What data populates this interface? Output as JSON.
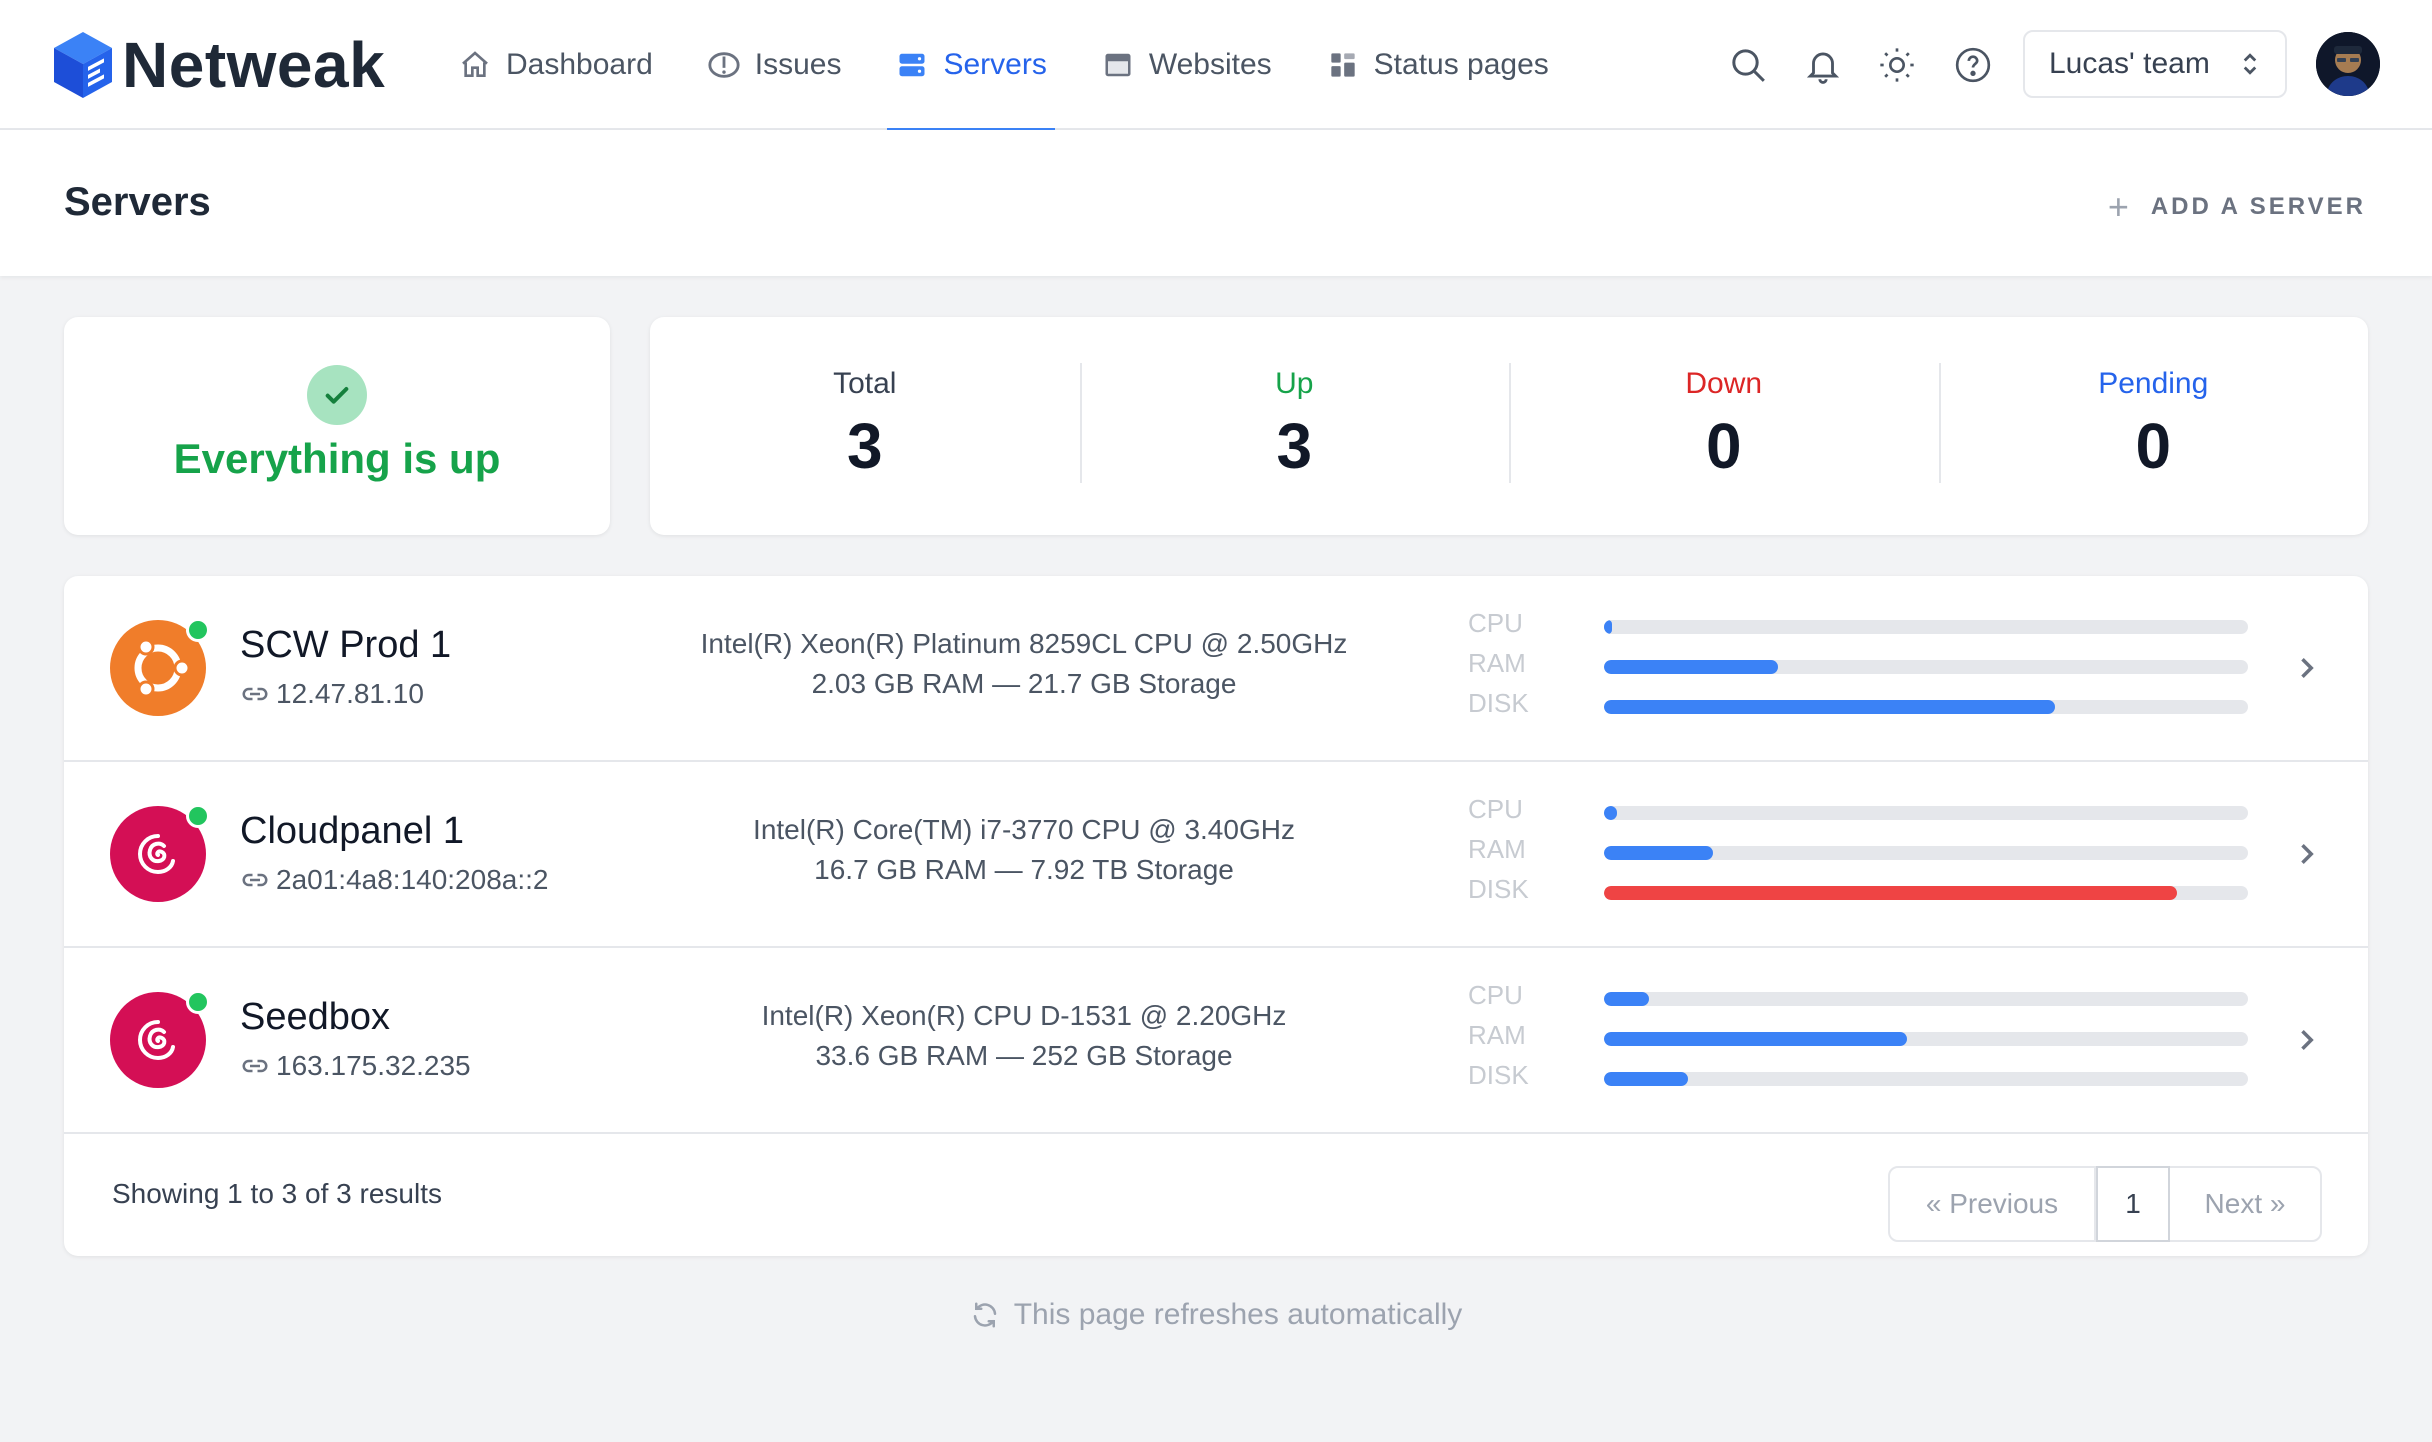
{
  "app": {
    "name": "Netweak"
  },
  "nav": {
    "items": [
      {
        "label": "Dashboard",
        "icon": "home-icon",
        "active": false
      },
      {
        "label": "Issues",
        "icon": "alert-icon",
        "active": false
      },
      {
        "label": "Servers",
        "icon": "server-icon",
        "active": true
      },
      {
        "label": "Websites",
        "icon": "browser-icon",
        "active": false
      },
      {
        "label": "Status pages",
        "icon": "status-page-icon",
        "active": false
      }
    ],
    "team": "Lucas' team"
  },
  "page": {
    "title": "Servers",
    "add_label": "ADD A SERVER"
  },
  "status": {
    "text": "Everything is up"
  },
  "stats": [
    {
      "label": "Total",
      "value": "3",
      "color": "#374151"
    },
    {
      "label": "Up",
      "value": "3",
      "color": "#16a34a"
    },
    {
      "label": "Down",
      "value": "0",
      "color": "#dc2626"
    },
    {
      "label": "Pending",
      "value": "0",
      "color": "#2563eb"
    }
  ],
  "metric_labels": [
    "CPU",
    "RAM",
    "DISK"
  ],
  "servers": [
    {
      "name": "SCW Prod 1",
      "ip": "12.47.81.10",
      "os": "ubuntu",
      "cpu": "Intel(R) Xeon(R) Platinum 8259CL CPU @ 2.50GHz",
      "spec": "2.03 GB RAM — 21.7 GB Storage",
      "usage": {
        "cpu": 0.01,
        "ram": 0.27,
        "disk": 0.7
      },
      "colors": {
        "cpu": "#3b82f6",
        "ram": "#3b82f6",
        "disk": "#3b82f6"
      }
    },
    {
      "name": "Cloudpanel 1",
      "ip": "2a01:4a8:140:208a::2",
      "os": "debian",
      "cpu": "Intel(R) Core(TM) i7-3770 CPU @ 3.40GHz",
      "spec": "16.7 GB RAM — 7.92 TB Storage",
      "usage": {
        "cpu": 0.02,
        "ram": 0.17,
        "disk": 0.89
      },
      "colors": {
        "cpu": "#3b82f6",
        "ram": "#3b82f6",
        "disk": "#ef4444"
      }
    },
    {
      "name": "Seedbox",
      "ip": "163.175.32.235",
      "os": "debian",
      "cpu": "Intel(R) Xeon(R) CPU D-1531 @ 2.20GHz",
      "spec": "33.6 GB RAM — 252 GB Storage",
      "usage": {
        "cpu": 0.07,
        "ram": 0.47,
        "disk": 0.13
      },
      "colors": {
        "cpu": "#3b82f6",
        "ram": "#3b82f6",
        "disk": "#3b82f6"
      }
    }
  ],
  "pagination": {
    "showing": "Showing 1 to 3 of 3 results",
    "prev": "« Previous",
    "page": "1",
    "next": "Next »"
  },
  "footer": {
    "refresh": "This page refreshes automatically"
  }
}
